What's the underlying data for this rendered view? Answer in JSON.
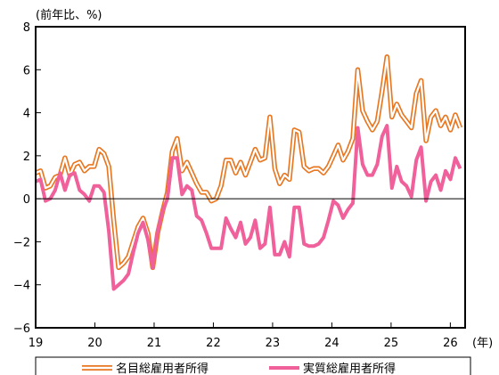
{
  "chart_data": {
    "type": "line",
    "y_unit_label": "(前年比、%)",
    "x_unit_label": "(年)",
    "ylim": [
      -6,
      8
    ],
    "y_ticks": [
      "8",
      "6",
      "4",
      "2",
      "0",
      "−2",
      "−4",
      "−6"
    ],
    "y_tick_values": [
      8,
      6,
      4,
      2,
      0,
      -2,
      -4,
      -6
    ],
    "x_ticks": [
      "19",
      "20",
      "21",
      "22",
      "23",
      "24",
      "25",
      "26"
    ],
    "x_tick_values": [
      2019,
      2020,
      2021,
      2022,
      2023,
      2024,
      2025,
      2026
    ],
    "x_start": 2019.0,
    "x_end": 2026.25,
    "grid": false,
    "legend_position": "bottom",
    "series": [
      {
        "name": "名目総雇用者所得",
        "style": "double-line",
        "color": "#e87722",
        "values": [
          1.2,
          1.3,
          0.5,
          0.6,
          1.0,
          1.1,
          1.9,
          1.1,
          1.6,
          1.7,
          1.3,
          1.5,
          1.5,
          2.3,
          2.1,
          1.5,
          -1.0,
          -3.2,
          -3.0,
          -2.7,
          -2.0,
          -1.3,
          -0.9,
          -1.6,
          -3.2,
          -1.6,
          -0.6,
          0.3,
          2.2,
          2.8,
          1.3,
          1.7,
          1.2,
          0.7,
          0.3,
          0.3,
          -0.1,
          0.0,
          0.6,
          1.8,
          1.8,
          1.2,
          1.7,
          1.1,
          1.7,
          2.3,
          1.8,
          1.9,
          3.8,
          1.4,
          0.7,
          1.1,
          0.9,
          3.2,
          3.1,
          1.5,
          1.3,
          1.4,
          1.4,
          1.2,
          1.5,
          2.0,
          2.5,
          1.8,
          2.2,
          2.8,
          6.0,
          4.1,
          3.6,
          3.2,
          3.6,
          5.0,
          6.6,
          3.8,
          4.4,
          3.9,
          3.6,
          3.3,
          4.9,
          5.5,
          2.7,
          3.8,
          4.1,
          3.4,
          3.8,
          3.2,
          3.9,
          3.3
        ]
      },
      {
        "name": "実質総雇用者所得",
        "style": "line",
        "color": "#f0609a",
        "values": [
          0.8,
          0.9,
          -0.1,
          0.0,
          0.4,
          1.2,
          0.4,
          1.1,
          1.2,
          0.4,
          0.2,
          -0.1,
          0.6,
          0.6,
          0.3,
          -1.5,
          -4.2,
          -4.0,
          -3.8,
          -3.5,
          -2.5,
          -1.6,
          -1.1,
          -1.9,
          -3.2,
          -1.5,
          -0.6,
          0.0,
          1.9,
          1.9,
          0.2,
          0.6,
          0.4,
          -0.8,
          -1.0,
          -1.6,
          -2.3,
          -2.3,
          -2.3,
          -0.9,
          -1.4,
          -1.8,
          -1.1,
          -2.1,
          -1.8,
          -1.0,
          -2.3,
          -2.1,
          -0.4,
          -2.6,
          -2.6,
          -2.0,
          -2.7,
          -0.4,
          -0.4,
          -2.1,
          -2.2,
          -2.2,
          -2.1,
          -1.8,
          -1.0,
          -0.1,
          -0.3,
          -0.9,
          -0.5,
          -0.2,
          3.3,
          1.6,
          1.1,
          1.1,
          1.6,
          2.9,
          3.4,
          0.5,
          1.5,
          0.8,
          0.6,
          0.1,
          1.8,
          2.4,
          -0.1,
          0.8,
          1.1,
          0.4,
          1.3,
          0.9,
          1.9,
          1.4
        ]
      }
    ]
  }
}
